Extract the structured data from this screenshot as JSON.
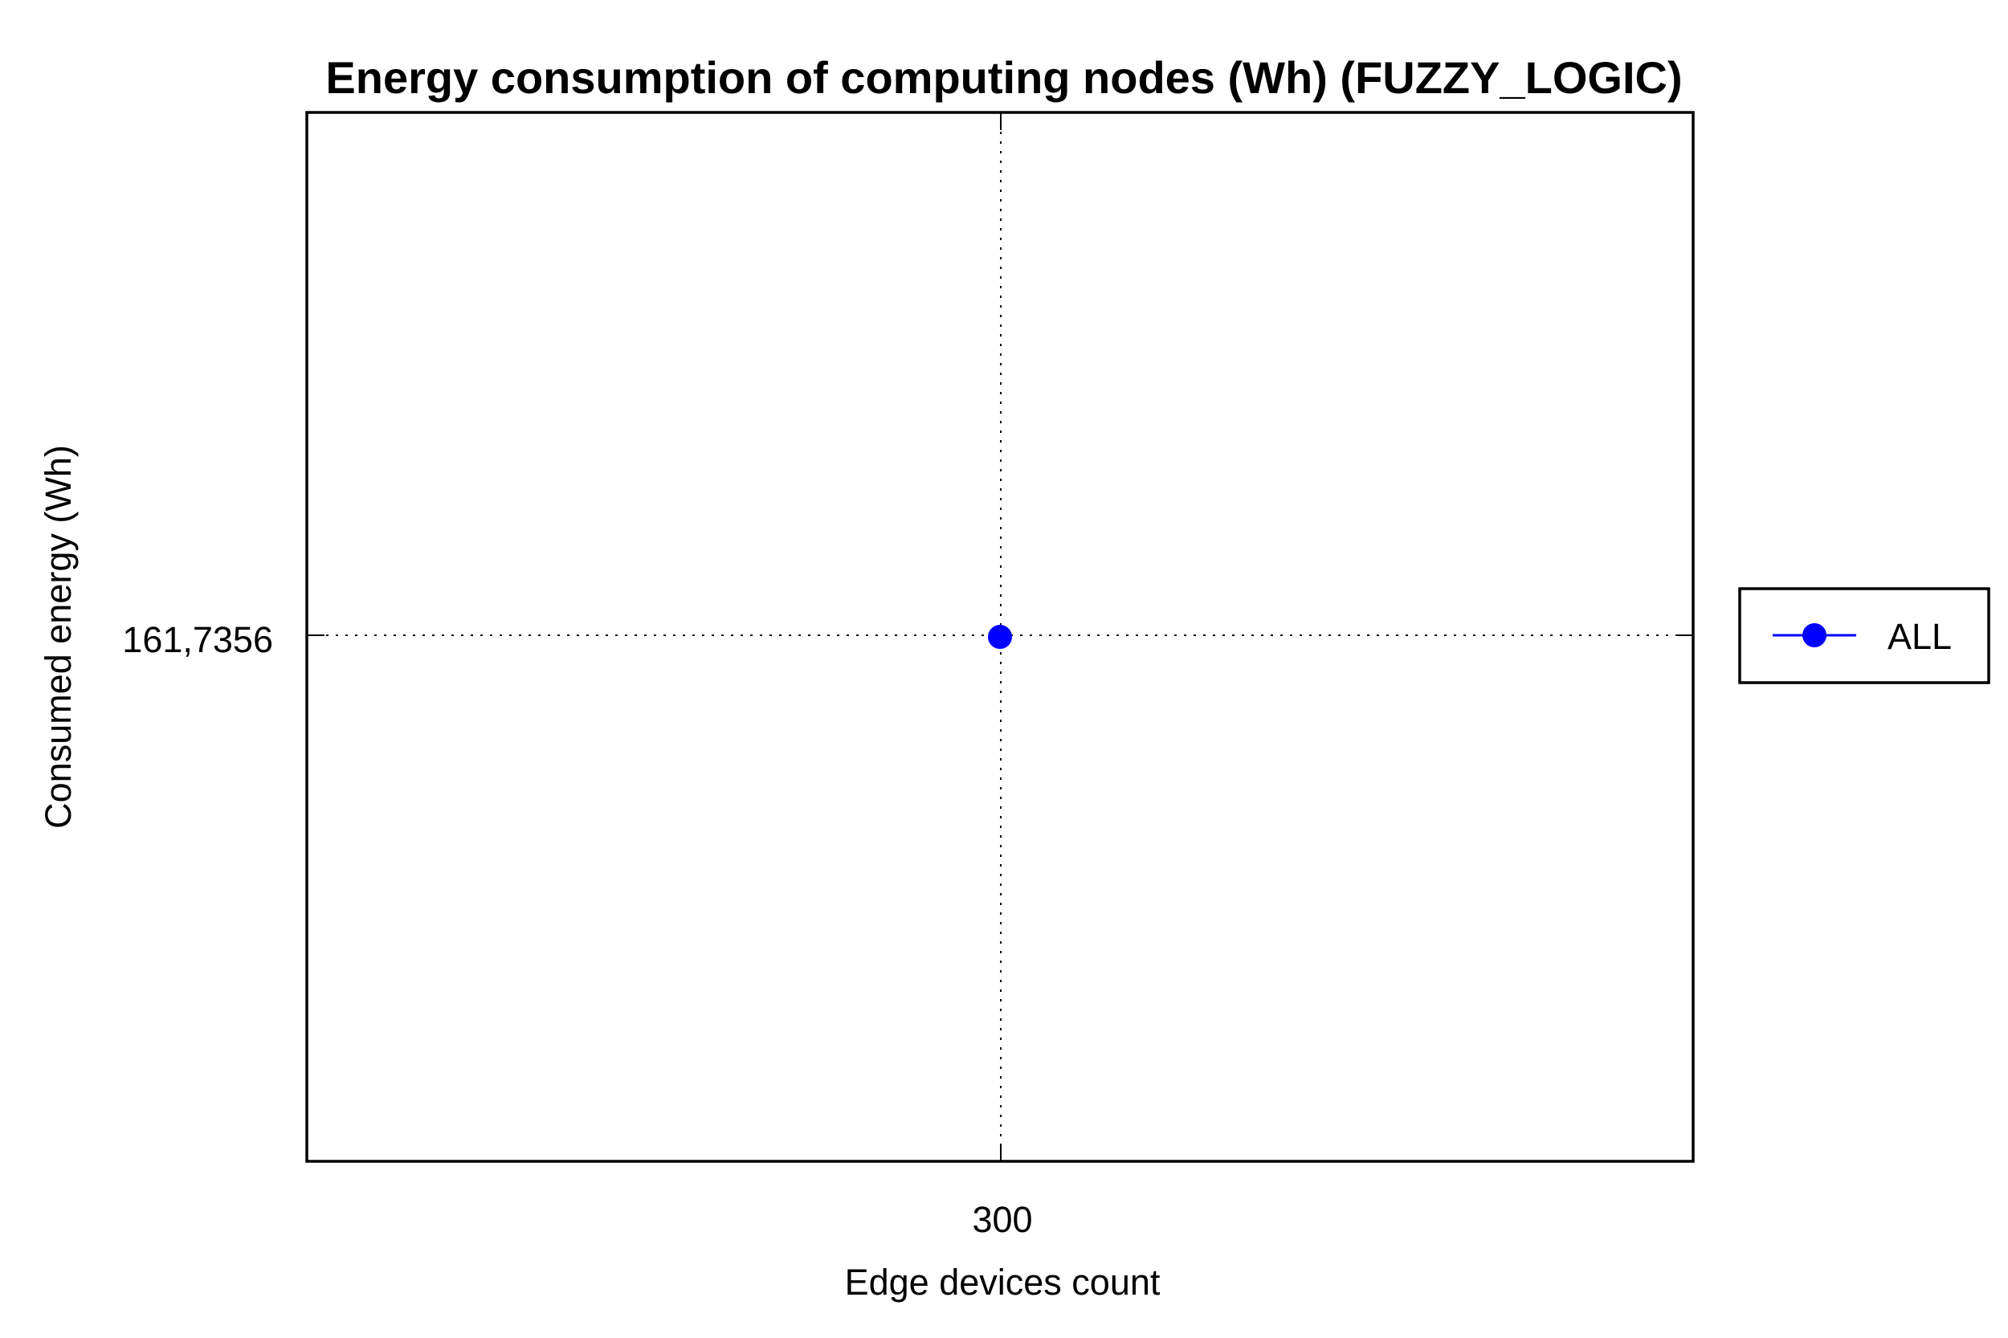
{
  "chart_data": {
    "type": "line",
    "title": "Energy consumption of computing nodes (Wh) (FUZZY_LOGIC)",
    "xlabel": "Edge devices count",
    "ylabel": "Consumed energy (Wh)",
    "x_tick_labels": [
      "300"
    ],
    "y_tick_labels": [
      "161,7356"
    ],
    "grid": "dotted",
    "legend_position": "right",
    "series": [
      {
        "name": "ALL",
        "color": "#0000ff",
        "marker": "circle",
        "points": [
          {
            "x": 300,
            "y": 161.7356
          }
        ]
      }
    ]
  }
}
